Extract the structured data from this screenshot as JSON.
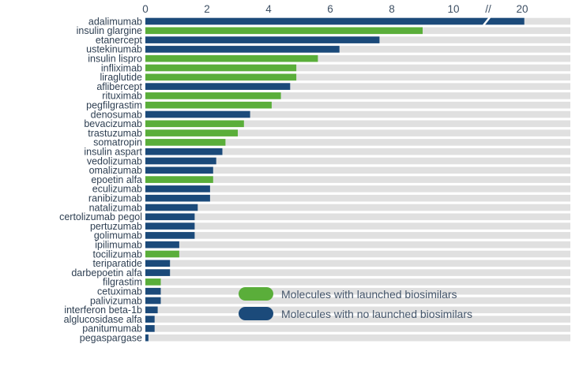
{
  "chart_data": {
    "type": "bar",
    "orientation": "horizontal",
    "axis_break": {
      "shown_at": 11,
      "label": "//"
    },
    "x_ticks": [
      "0",
      "2",
      "4",
      "6",
      "8",
      "10",
      "20"
    ],
    "xlim": [
      0,
      12.5
    ],
    "grid": false,
    "legend_position": "bottom-right",
    "colors": {
      "launched": "#5aae3a",
      "not_launched": "#1b4a7a",
      "track": "#e0e0e0"
    },
    "series_names": {
      "launched": "Molecules with launched biosimilars",
      "not_launched": "Molecules with no launched biosimilars"
    },
    "categories": [
      "adalimumab",
      "insulin glargine",
      "etanercept",
      "ustekinumab",
      "insulin lispro",
      "infliximab",
      "liraglutide",
      "aflibercept",
      "rituximab",
      "pegfilgrastim",
      "denosumab",
      "bevacizumab",
      "trastuzumab",
      "somatropin",
      "insulin aspart",
      "vedolizumab",
      "omalizumab",
      "epoetin alfa",
      "eculizumab",
      "ranibizumab",
      "natalizumab",
      "certolizumab pegol",
      "pertuzumab",
      "golimumab",
      "ipilimumab",
      "tocilizumab",
      "teriparatide",
      "darbepoetin alfa",
      "filgrastim",
      "cetuximab",
      "palivizumab",
      "interferon beta-1b",
      "alglucosidase alfa",
      "panitumumab",
      "pegaspargase"
    ],
    "values": [
      20,
      9.0,
      7.6,
      6.3,
      5.6,
      4.9,
      4.9,
      4.7,
      4.4,
      4.1,
      3.4,
      3.2,
      3.0,
      2.6,
      2.5,
      2.3,
      2.2,
      2.2,
      2.1,
      2.1,
      1.7,
      1.6,
      1.6,
      1.6,
      1.1,
      1.1,
      0.8,
      0.8,
      0.5,
      0.5,
      0.5,
      0.4,
      0.3,
      0.3,
      0.1
    ],
    "launched": [
      "not_launched",
      "launched",
      "not_launched",
      "not_launched",
      "launched",
      "launched",
      "launched",
      "not_launched",
      "launched",
      "launched",
      "not_launched",
      "launched",
      "launched",
      "launched",
      "not_launched",
      "not_launched",
      "not_launched",
      "launched",
      "not_launched",
      "not_launched",
      "not_launched",
      "not_launched",
      "not_launched",
      "not_launched",
      "not_launched",
      "launched",
      "not_launched",
      "not_launched",
      "launched",
      "not_launched",
      "not_launched",
      "not_launched",
      "not_launched",
      "not_launched",
      "not_launched"
    ]
  }
}
